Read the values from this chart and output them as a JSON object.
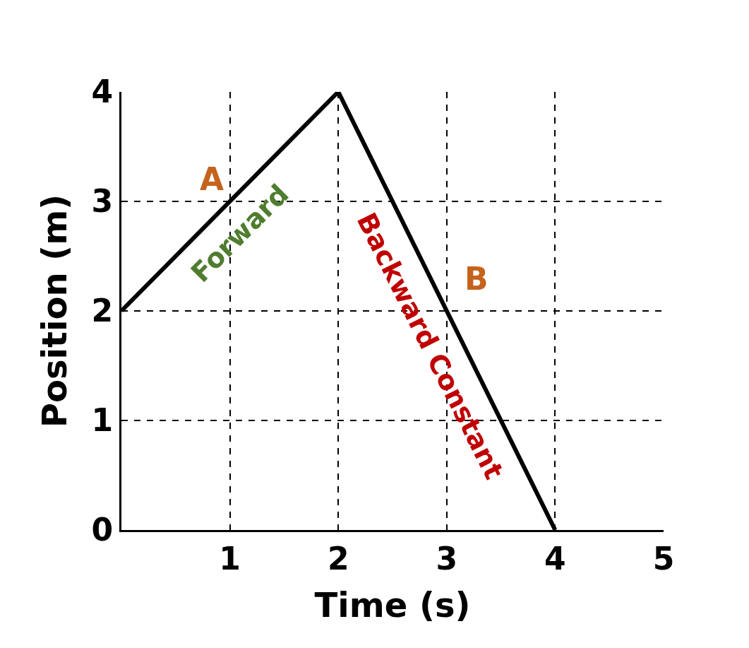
{
  "chart_data": {
    "type": "line",
    "xlabel": "Time (s)",
    "ylabel": "Position (m)",
    "x": [
      0,
      2,
      4
    ],
    "series": [
      {
        "color": "#000000",
        "values": [
          2,
          4,
          0
        ]
      }
    ],
    "xlim": [
      0,
      5
    ],
    "ylim": [
      0,
      4
    ],
    "xticks": [
      1,
      2,
      3,
      4,
      5
    ],
    "yticks": [
      0,
      1,
      2,
      3,
      4
    ],
    "grid": true,
    "legend": false,
    "marker": "none",
    "line_style": "solid",
    "annotations": [
      "A",
      "Forward",
      "Backward Constant",
      "B"
    ]
  }
}
